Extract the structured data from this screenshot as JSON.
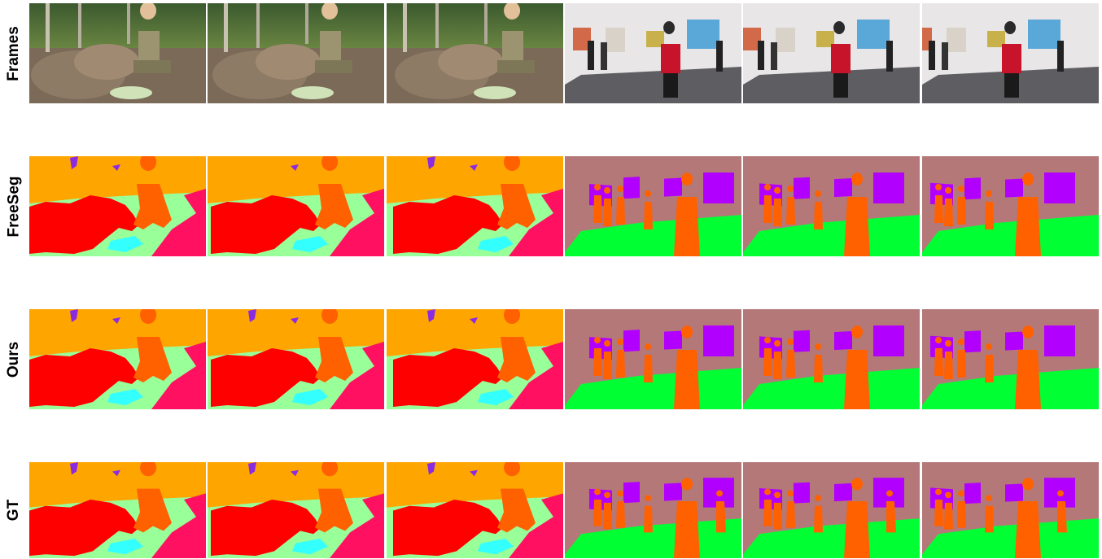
{
  "rows": [
    {
      "id": "frames",
      "label": "Frames",
      "kind": "photo"
    },
    {
      "id": "freeseg",
      "label": "FreeSeg",
      "kind": "seg"
    },
    {
      "id": "ours",
      "label": "Ours",
      "kind": "seg"
    },
    {
      "id": "gt",
      "label": "GT",
      "kind": "seg"
    }
  ],
  "scenes": [
    {
      "id": "tortoise-scene",
      "frames": 3
    },
    {
      "id": "gallery-scene",
      "frames": 3
    }
  ],
  "palette": {
    "sky_wall": "#ffa500",
    "ground": "#99ff99",
    "tortoise": "#ff0000",
    "person": "#ff6000",
    "food": "#33ffff",
    "rock": "#ff1060",
    "bird": "#8a2be2",
    "gallery_wall": "#b47878",
    "gallery_floor": "#00ff33",
    "painting": "#b200ff"
  }
}
